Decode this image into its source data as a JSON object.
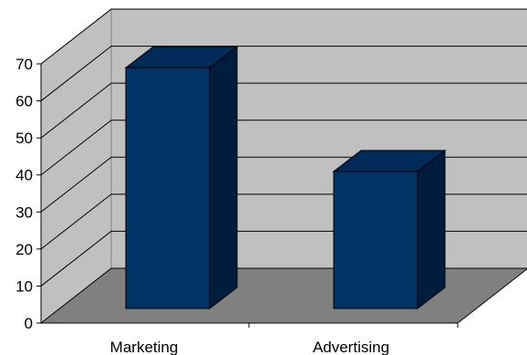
{
  "chart_data": {
    "type": "bar",
    "style": "3d-column",
    "categories": [
      "Marketing",
      "Advertising"
    ],
    "values": [
      65,
      37
    ],
    "title": "",
    "xlabel": "",
    "ylabel": "",
    "ylim": [
      0,
      70
    ],
    "yticks": [
      0,
      10,
      20,
      30,
      40,
      50,
      60,
      70
    ],
    "grid": true,
    "legend": "none",
    "colors": {
      "bar_front": "#003366",
      "bar_top": "#002a58",
      "bar_side": "#001d3d",
      "back_wall": "#c0c0c0",
      "side_wall": "#c0c0c0",
      "floor": "#808080",
      "gridline": "#000000"
    }
  }
}
